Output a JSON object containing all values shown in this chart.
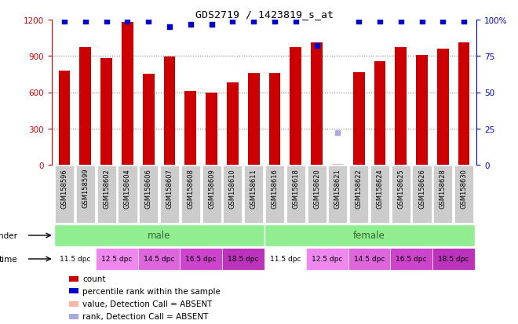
{
  "title": "GDS2719 / 1423819_s_at",
  "samples": [
    "GSM158596",
    "GSM158599",
    "GSM158602",
    "GSM158604",
    "GSM158606",
    "GSM158607",
    "GSM158608",
    "GSM158609",
    "GSM158610",
    "GSM158611",
    "GSM158616",
    "GSM158618",
    "GSM158620",
    "GSM158621",
    "GSM158622",
    "GSM158624",
    "GSM158625",
    "GSM158626",
    "GSM158628",
    "GSM158630"
  ],
  "bar_values": [
    780,
    970,
    880,
    1180,
    755,
    895,
    610,
    600,
    680,
    760,
    760,
    970,
    1010,
    5,
    765,
    855,
    975,
    910,
    960,
    1010
  ],
  "bar_absent": [
    false,
    false,
    false,
    false,
    false,
    false,
    false,
    false,
    false,
    false,
    false,
    false,
    false,
    true,
    false,
    false,
    false,
    false,
    false,
    false
  ],
  "percentile_ranks": [
    99,
    99,
    99,
    99,
    99,
    95,
    97,
    97,
    99,
    99,
    99,
    99,
    82,
    22,
    99,
    99,
    99,
    99,
    99,
    99
  ],
  "percentile_absent": [
    false,
    false,
    false,
    false,
    false,
    false,
    false,
    false,
    false,
    false,
    false,
    false,
    false,
    true,
    false,
    false,
    false,
    false,
    false,
    false
  ],
  "bar_color": "#CC0000",
  "bar_absent_color": "#FFB6A0",
  "dot_color": "#0000CC",
  "dot_absent_color": "#AAAADD",
  "ylim_left": [
    0,
    1200
  ],
  "ylim_right": [
    0,
    100
  ],
  "yticks_left": [
    0,
    300,
    600,
    900,
    1200
  ],
  "yticks_right": [
    0,
    25,
    50,
    75,
    100
  ],
  "gender_labels": [
    "male",
    "female"
  ],
  "gender_color": "#90EE90",
  "gender_ranges": [
    [
      0,
      10
    ],
    [
      10,
      20
    ]
  ],
  "time_labels": [
    "11.5 dpc",
    "12.5 dpc",
    "14.5 dpc",
    "16.5 dpc",
    "18.5 dpc",
    "11.5 dpc",
    "12.5 dpc",
    "14.5 dpc",
    "16.5 dpc",
    "18.5 dpc"
  ],
  "time_ranges": [
    [
      0,
      2
    ],
    [
      2,
      4
    ],
    [
      4,
      6
    ],
    [
      6,
      8
    ],
    [
      8,
      10
    ],
    [
      10,
      12
    ],
    [
      12,
      14
    ],
    [
      14,
      16
    ],
    [
      16,
      18
    ],
    [
      18,
      20
    ]
  ],
  "time_color_map": {
    "11.5 dpc": "#FFFFFF",
    "12.5 dpc": "#EE88EE",
    "14.5 dpc": "#DD66DD",
    "16.5 dpc": "#CC44CC",
    "18.5 dpc": "#BB33BB"
  },
  "xtick_bg": "#CCCCCC",
  "legend_items": [
    {
      "color": "#CC0000",
      "label": "count"
    },
    {
      "color": "#0000CC",
      "label": "percentile rank within the sample"
    },
    {
      "color": "#FFB6A0",
      "label": "value, Detection Call = ABSENT"
    },
    {
      "color": "#AAAADD",
      "label": "rank, Detection Call = ABSENT"
    }
  ]
}
